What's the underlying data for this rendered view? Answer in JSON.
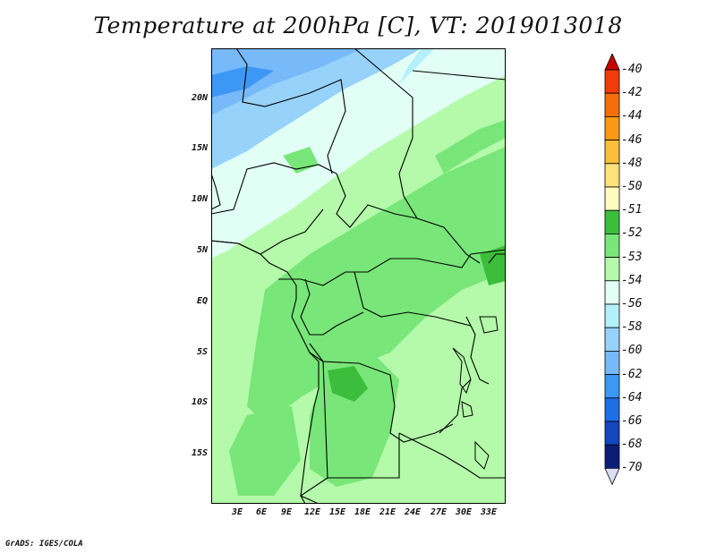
{
  "title": "Temperature at 200hPa [C], VT: 2019013018",
  "credit": "GrADS: IGES/COLA",
  "map": {
    "lat_labels": [
      "20N",
      "15N",
      "10N",
      "5N",
      "EQ",
      "5S",
      "10S",
      "15S"
    ],
    "lon_labels": [
      "3E",
      "6E",
      "9E",
      "12E",
      "15E",
      "18E",
      "21E",
      "24E",
      "27E",
      "30E",
      "33E"
    ]
  },
  "colorbar": {
    "levels": [
      {
        "label": "-40",
        "color": "#e01e10"
      },
      {
        "label": "-42",
        "color": "#f03c0a"
      },
      {
        "label": "-44",
        "color": "#f56e0a"
      },
      {
        "label": "-46",
        "color": "#f89a14"
      },
      {
        "label": "-48",
        "color": "#fbbf3c"
      },
      {
        "label": "-50",
        "color": "#fde17a"
      },
      {
        "label": "-51",
        "color": "#fffbc0"
      },
      {
        "label": "-52",
        "color": "#3cbe3c"
      },
      {
        "label": "-53",
        "color": "#78e678"
      },
      {
        "label": "-54",
        "color": "#b4faaa"
      },
      {
        "label": "-56",
        "color": "#e1fff5"
      },
      {
        "label": "-58",
        "color": "#b4f0fa"
      },
      {
        "label": "-60",
        "color": "#96d2fa"
      },
      {
        "label": "-62",
        "color": "#78b9fa"
      },
      {
        "label": "-64",
        "color": "#3c97f5"
      },
      {
        "label": "-66",
        "color": "#1e6ee6"
      },
      {
        "label": "-68",
        "color": "#1446be"
      },
      {
        "label": "-70",
        "color": "#0a1e78"
      }
    ],
    "min_color": "#dcdcf5",
    "max_color": "#c80000"
  }
}
